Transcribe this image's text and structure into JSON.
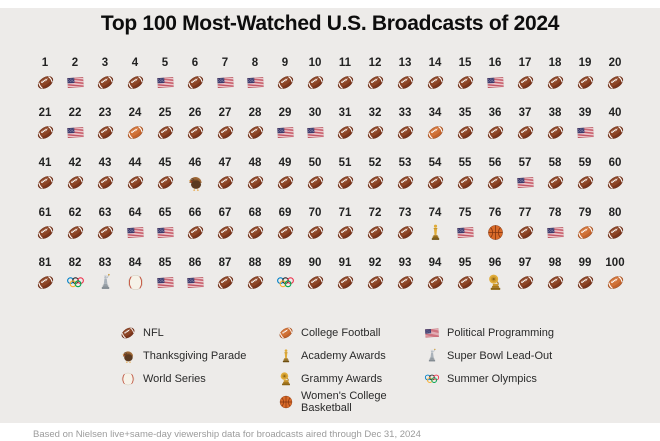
{
  "title": "Top 100 Most-Watched U.S. Broadcasts of 2024",
  "caption": "Based on Nielsen live+same-day viewership data for broadcasts aired through Dec 31, 2024",
  "colors": {
    "page_background": "#ffffff",
    "board_background": "#edebe9",
    "title_text": "#0d0d0d",
    "rank_text": "#222222",
    "nfl_football": "#7a341b",
    "college_football": "#c2622c",
    "flag_red": "#b22234",
    "flag_blue": "#3c3b6e",
    "gold": "#e0ac3a",
    "basketball_orange": "#d96a29",
    "statue_gray": "#b7bec6"
  },
  "legend": {
    "columns": [
      {
        "items": [
          {
            "icon": "nfl",
            "label": "NFL"
          },
          {
            "icon": "turkey",
            "label": "Thanksgiving Parade"
          },
          {
            "icon": "baseball",
            "label": "World Series"
          }
        ]
      },
      {
        "items": [
          {
            "icon": "cfb",
            "label": "College Football"
          },
          {
            "icon": "oscar",
            "label": "Academy Awards"
          },
          {
            "icon": "grammy",
            "label": "Grammy Awards"
          },
          {
            "icon": "basketball",
            "label": "Women's College Basketball"
          }
        ]
      },
      {
        "items": [
          {
            "icon": "flag",
            "label": "Political Programming"
          },
          {
            "icon": "statue",
            "label": "Super Bowl Lead-Out"
          },
          {
            "icon": "rings",
            "label": "Summer Olympics"
          }
        ]
      }
    ]
  },
  "chart_data": {
    "type": "table",
    "title": "Top 100 Most-Watched U.S. Broadcasts of 2024",
    "grid": {
      "rows": 5,
      "cols": 20
    },
    "categories": {
      "nfl": "NFL",
      "cfb": "College Football",
      "flag": "Political Programming",
      "turkey": "Thanksgiving Parade",
      "baseball": "World Series",
      "oscar": "Academy Awards",
      "grammy": "Grammy Awards",
      "basketball": "Women's College Basketball",
      "statue": "Super Bowl Lead-Out",
      "rings": "Summer Olympics"
    },
    "items": [
      {
        "rank": 1,
        "icon": "nfl"
      },
      {
        "rank": 2,
        "icon": "flag"
      },
      {
        "rank": 3,
        "icon": "nfl"
      },
      {
        "rank": 4,
        "icon": "nfl"
      },
      {
        "rank": 5,
        "icon": "flag"
      },
      {
        "rank": 6,
        "icon": "nfl"
      },
      {
        "rank": 7,
        "icon": "flag"
      },
      {
        "rank": 8,
        "icon": "flag"
      },
      {
        "rank": 9,
        "icon": "nfl"
      },
      {
        "rank": 10,
        "icon": "nfl"
      },
      {
        "rank": 11,
        "icon": "nfl"
      },
      {
        "rank": 12,
        "icon": "nfl"
      },
      {
        "rank": 13,
        "icon": "nfl"
      },
      {
        "rank": 14,
        "icon": "nfl"
      },
      {
        "rank": 15,
        "icon": "nfl"
      },
      {
        "rank": 16,
        "icon": "flag"
      },
      {
        "rank": 17,
        "icon": "nfl"
      },
      {
        "rank": 18,
        "icon": "nfl"
      },
      {
        "rank": 19,
        "icon": "nfl"
      },
      {
        "rank": 20,
        "icon": "nfl"
      },
      {
        "rank": 21,
        "icon": "nfl"
      },
      {
        "rank": 22,
        "icon": "flag"
      },
      {
        "rank": 23,
        "icon": "nfl"
      },
      {
        "rank": 24,
        "icon": "cfb"
      },
      {
        "rank": 25,
        "icon": "nfl"
      },
      {
        "rank": 26,
        "icon": "nfl"
      },
      {
        "rank": 27,
        "icon": "nfl"
      },
      {
        "rank": 28,
        "icon": "nfl"
      },
      {
        "rank": 29,
        "icon": "flag"
      },
      {
        "rank": 30,
        "icon": "flag"
      },
      {
        "rank": 31,
        "icon": "nfl"
      },
      {
        "rank": 32,
        "icon": "nfl"
      },
      {
        "rank": 33,
        "icon": "nfl"
      },
      {
        "rank": 34,
        "icon": "cfb"
      },
      {
        "rank": 35,
        "icon": "nfl"
      },
      {
        "rank": 36,
        "icon": "nfl"
      },
      {
        "rank": 37,
        "icon": "nfl"
      },
      {
        "rank": 38,
        "icon": "nfl"
      },
      {
        "rank": 39,
        "icon": "flag"
      },
      {
        "rank": 40,
        "icon": "nfl"
      },
      {
        "rank": 41,
        "icon": "nfl"
      },
      {
        "rank": 42,
        "icon": "nfl"
      },
      {
        "rank": 43,
        "icon": "nfl"
      },
      {
        "rank": 44,
        "icon": "nfl"
      },
      {
        "rank": 45,
        "icon": "nfl"
      },
      {
        "rank": 46,
        "icon": "turkey"
      },
      {
        "rank": 47,
        "icon": "nfl"
      },
      {
        "rank": 48,
        "icon": "nfl"
      },
      {
        "rank": 49,
        "icon": "nfl"
      },
      {
        "rank": 50,
        "icon": "nfl"
      },
      {
        "rank": 51,
        "icon": "nfl"
      },
      {
        "rank": 52,
        "icon": "nfl"
      },
      {
        "rank": 53,
        "icon": "nfl"
      },
      {
        "rank": 54,
        "icon": "nfl"
      },
      {
        "rank": 55,
        "icon": "nfl"
      },
      {
        "rank": 56,
        "icon": "nfl"
      },
      {
        "rank": 57,
        "icon": "flag"
      },
      {
        "rank": 58,
        "icon": "nfl"
      },
      {
        "rank": 59,
        "icon": "nfl"
      },
      {
        "rank": 60,
        "icon": "nfl"
      },
      {
        "rank": 61,
        "icon": "nfl"
      },
      {
        "rank": 62,
        "icon": "nfl"
      },
      {
        "rank": 63,
        "icon": "nfl"
      },
      {
        "rank": 64,
        "icon": "flag"
      },
      {
        "rank": 65,
        "icon": "flag"
      },
      {
        "rank": 66,
        "icon": "nfl"
      },
      {
        "rank": 67,
        "icon": "nfl"
      },
      {
        "rank": 68,
        "icon": "nfl"
      },
      {
        "rank": 69,
        "icon": "nfl"
      },
      {
        "rank": 70,
        "icon": "nfl"
      },
      {
        "rank": 71,
        "icon": "nfl"
      },
      {
        "rank": 72,
        "icon": "nfl"
      },
      {
        "rank": 73,
        "icon": "nfl"
      },
      {
        "rank": 74,
        "icon": "oscar"
      },
      {
        "rank": 75,
        "icon": "flag"
      },
      {
        "rank": 76,
        "icon": "basketball"
      },
      {
        "rank": 77,
        "icon": "nfl"
      },
      {
        "rank": 78,
        "icon": "flag"
      },
      {
        "rank": 79,
        "icon": "cfb"
      },
      {
        "rank": 80,
        "icon": "nfl"
      },
      {
        "rank": 81,
        "icon": "nfl"
      },
      {
        "rank": 82,
        "icon": "rings"
      },
      {
        "rank": 83,
        "icon": "statue"
      },
      {
        "rank": 84,
        "icon": "baseball"
      },
      {
        "rank": 85,
        "icon": "flag"
      },
      {
        "rank": 86,
        "icon": "flag"
      },
      {
        "rank": 87,
        "icon": "nfl"
      },
      {
        "rank": 88,
        "icon": "nfl"
      },
      {
        "rank": 89,
        "icon": "rings"
      },
      {
        "rank": 90,
        "icon": "nfl"
      },
      {
        "rank": 91,
        "icon": "nfl"
      },
      {
        "rank": 92,
        "icon": "nfl"
      },
      {
        "rank": 93,
        "icon": "nfl"
      },
      {
        "rank": 94,
        "icon": "nfl"
      },
      {
        "rank": 95,
        "icon": "nfl"
      },
      {
        "rank": 96,
        "icon": "grammy"
      },
      {
        "rank": 97,
        "icon": "nfl"
      },
      {
        "rank": 98,
        "icon": "nfl"
      },
      {
        "rank": 99,
        "icon": "nfl"
      },
      {
        "rank": 100,
        "icon": "cfb"
      }
    ]
  }
}
